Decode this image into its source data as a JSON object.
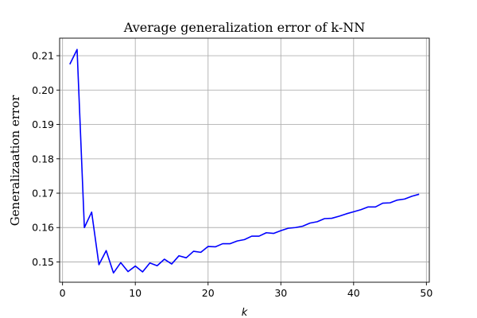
{
  "chart_data": {
    "type": "line",
    "title": "Average generalization error of k-NN",
    "xlabel": "k",
    "ylabel": "Generalizaation error",
    "xlim": [
      -0.4,
      50.4
    ],
    "ylim": [
      0.1441,
      0.2151
    ],
    "xticks": [
      0,
      10,
      20,
      30,
      40,
      50
    ],
    "yticks": [
      0.15,
      0.16,
      0.17,
      0.18,
      0.19,
      0.2,
      0.21
    ],
    "ytick_labels": [
      "0.15",
      "0.16",
      "0.17",
      "0.18",
      "0.19",
      "0.20",
      "0.21"
    ],
    "grid": true,
    "series": [
      {
        "color": "#0000ff",
        "x": [
          1,
          2,
          3,
          4,
          5,
          6,
          7,
          8,
          9,
          10,
          11,
          12,
          13,
          14,
          15,
          16,
          17,
          18,
          19,
          20,
          21,
          22,
          23,
          24,
          25,
          26,
          27,
          28,
          29,
          30,
          31,
          32,
          33,
          34,
          35,
          36,
          37,
          38,
          39,
          40,
          41,
          42,
          43,
          44,
          45,
          46,
          47,
          48,
          49
        ],
        "y": [
          0.2075,
          0.2118,
          0.16,
          0.1645,
          0.1492,
          0.1533,
          0.1468,
          0.1498,
          0.1472,
          0.1488,
          0.1471,
          0.1497,
          0.1489,
          0.1508,
          0.1494,
          0.1518,
          0.1512,
          0.1531,
          0.1528,
          0.1545,
          0.1544,
          0.1553,
          0.1553,
          0.1561,
          0.1565,
          0.1575,
          0.1575,
          0.1585,
          0.1583,
          0.1591,
          0.1598,
          0.16,
          0.1604,
          0.1613,
          0.1617,
          0.1626,
          0.1627,
          0.1633,
          0.164,
          0.1646,
          0.1652,
          0.166,
          0.166,
          0.1671,
          0.1672,
          0.168,
          0.1683,
          0.1691,
          0.1697
        ]
      }
    ]
  }
}
